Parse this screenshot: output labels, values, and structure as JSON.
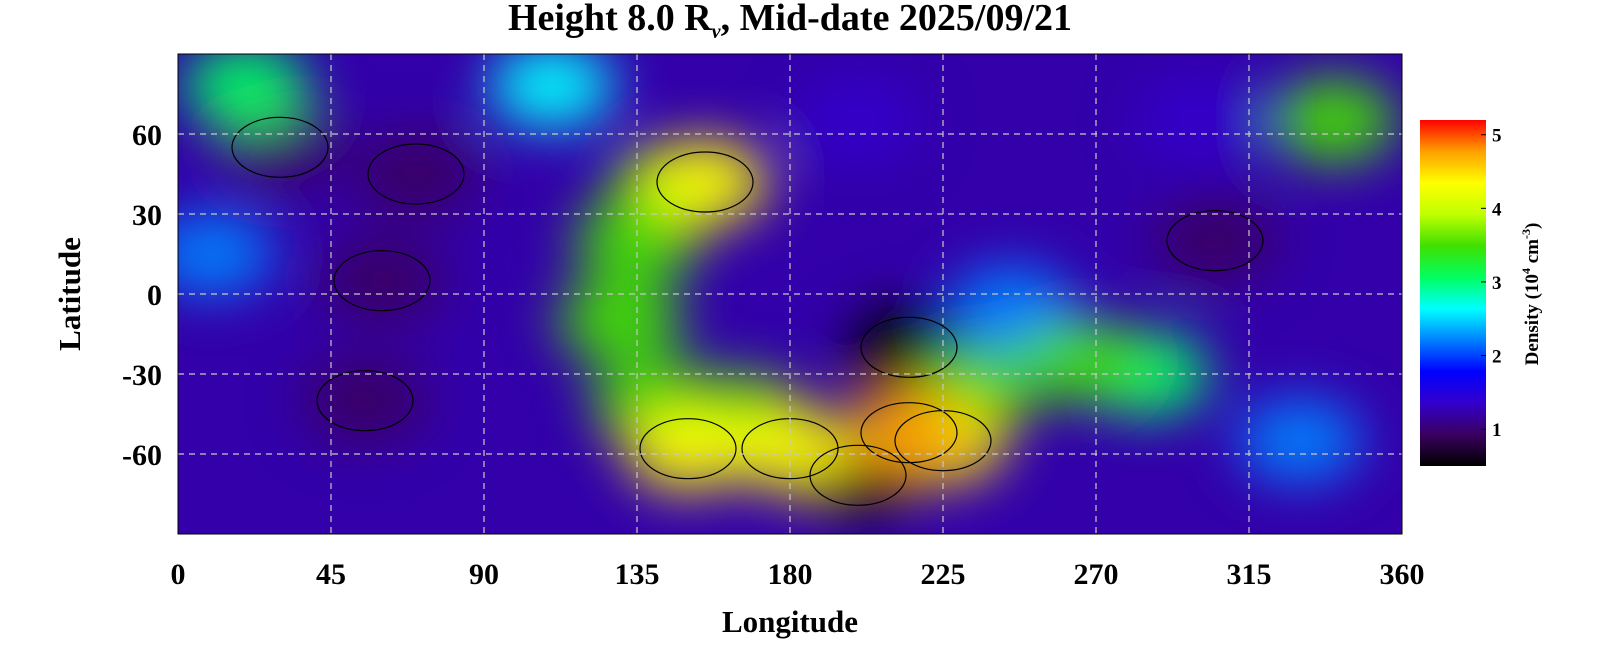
{
  "chart_data": {
    "type": "heatmap",
    "title_main": "Height 8.0 R",
    "title_sub": "v",
    "title_rest": ", Mid-date 2025/09/21",
    "xlabel": "Longitude",
    "ylabel": "Latitude",
    "xlim": [
      0,
      360
    ],
    "ylim": [
      -90,
      90
    ],
    "xticks": [
      0,
      45,
      90,
      135,
      180,
      225,
      270,
      315,
      360
    ],
    "yticks": [
      60,
      30,
      0,
      -30,
      -60
    ],
    "ytick_labels": [
      "60",
      "30",
      "0",
      "-30",
      "-60"
    ],
    "grid": true,
    "colorbar": {
      "label_main": "Density (10",
      "label_exp1": "4",
      "label_mid": " cm",
      "label_exp2": "-3",
      "label_end": ")",
      "range": [
        0.5,
        5.2
      ],
      "ticks": [
        1,
        2,
        3,
        4,
        5
      ],
      "tick_labels": [
        "1",
        "2",
        "3",
        "4",
        "5"
      ],
      "colormap": [
        "#000000",
        "#3a0060",
        "#3300cc",
        "#0000ff",
        "#0080ff",
        "#00ffff",
        "#00ff60",
        "#40e000",
        "#c0ff00",
        "#ffff00",
        "#ffa000",
        "#ff0000"
      ]
    },
    "field_features": [
      {
        "lon": 60,
        "lat": 5,
        "value": 0.8
      },
      {
        "lon": 70,
        "lat": 45,
        "value": 0.9
      },
      {
        "lon": 30,
        "lat": 55,
        "value": 0.9
      },
      {
        "lon": 55,
        "lat": -40,
        "value": 0.9
      },
      {
        "lon": 305,
        "lat": 20,
        "value": 1.1
      },
      {
        "lon": 215,
        "lat": -20,
        "value": 0.7
      },
      {
        "lon": 200,
        "lat": -68,
        "value": 0.7
      },
      {
        "lon": 200,
        "lat": 65,
        "value": 1.3
      },
      {
        "lon": 300,
        "lat": 65,
        "value": 1.4
      },
      {
        "lon": 10,
        "lat": 15,
        "value": 2.0
      },
      {
        "lon": 145,
        "lat": 40,
        "value": 3.6
      },
      {
        "lon": 155,
        "lat": 42,
        "value": 4.3
      },
      {
        "lon": 135,
        "lat": 20,
        "value": 3.3
      },
      {
        "lon": 130,
        "lat": -10,
        "value": 3.4
      },
      {
        "lon": 140,
        "lat": -40,
        "value": 3.7
      },
      {
        "lon": 150,
        "lat": -58,
        "value": 4.4
      },
      {
        "lon": 180,
        "lat": -58,
        "value": 4.4
      },
      {
        "lon": 215,
        "lat": -52,
        "value": 4.6
      },
      {
        "lon": 225,
        "lat": -55,
        "value": 4.5
      },
      {
        "lon": 165,
        "lat": -45,
        "value": 3.6
      },
      {
        "lon": 235,
        "lat": -35,
        "value": 3.4
      },
      {
        "lon": 265,
        "lat": -25,
        "value": 3.5
      },
      {
        "lon": 285,
        "lat": -30,
        "value": 3.2
      },
      {
        "lon": 245,
        "lat": -5,
        "value": 2.4
      },
      {
        "lon": 340,
        "lat": 65,
        "value": 3.3
      },
      {
        "lon": 20,
        "lat": 78,
        "value": 3.0
      },
      {
        "lon": 110,
        "lat": 78,
        "value": 2.6
      },
      {
        "lon": 330,
        "lat": -55,
        "value": 2.0
      }
    ]
  }
}
